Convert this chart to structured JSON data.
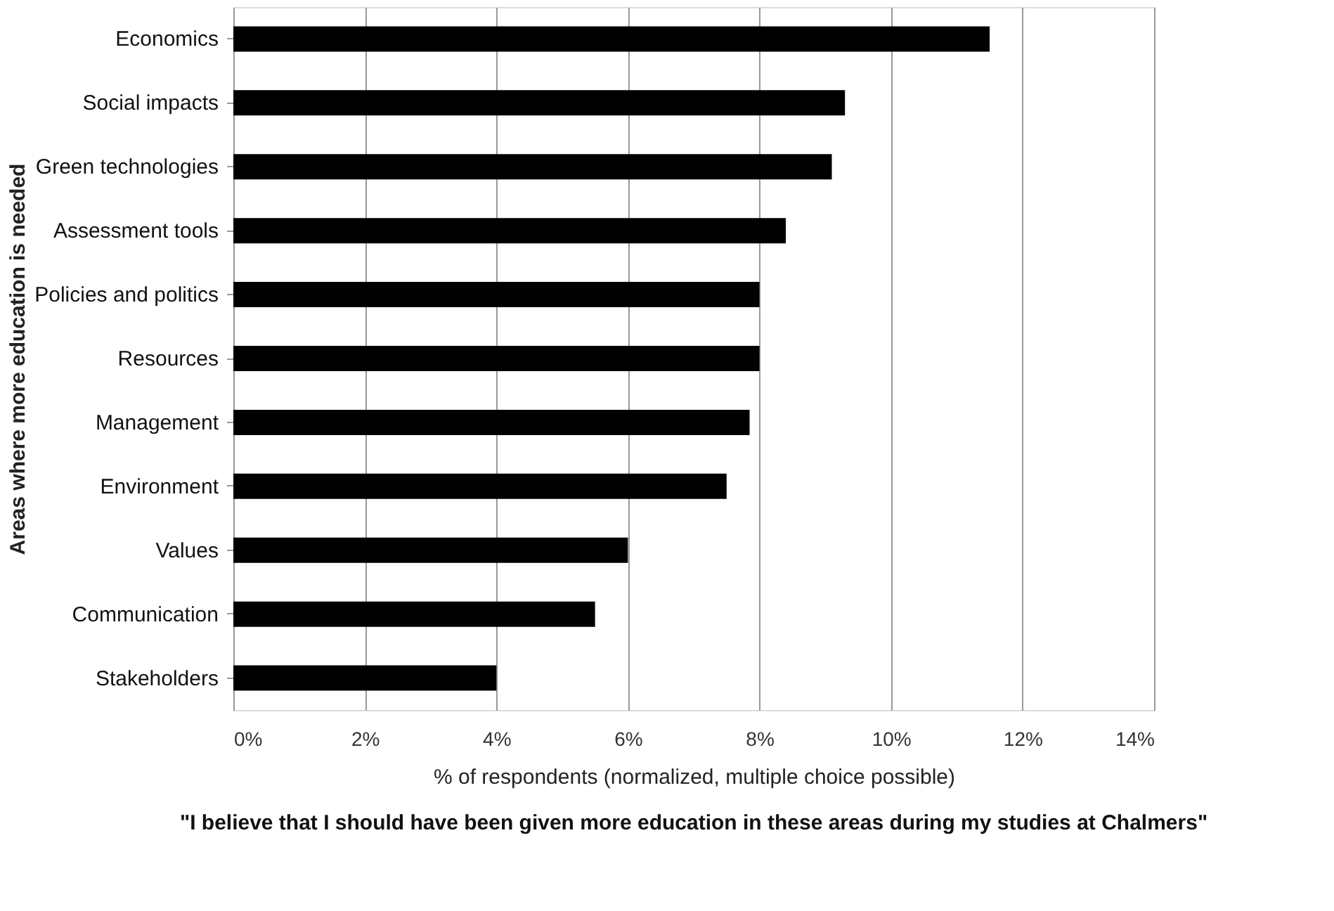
{
  "chart_data": {
    "type": "bar",
    "orientation": "horizontal",
    "categories": [
      "Economics",
      "Social impacts",
      "Green technologies",
      "Assessment tools",
      "Policies and politics",
      "Resources",
      "Management",
      "Environment",
      "Values",
      "Communication",
      "Stakeholders"
    ],
    "values": [
      11.5,
      9.3,
      9.1,
      8.4,
      8.0,
      8.0,
      7.85,
      7.5,
      6.0,
      5.5,
      4.0
    ],
    "color": "#000000",
    "xlim": [
      0,
      14
    ],
    "xticks": [
      {
        "value": 0,
        "label": "0%"
      },
      {
        "value": 2,
        "label": "2%"
      },
      {
        "value": 4,
        "label": "4%"
      },
      {
        "value": 6,
        "label": "6%"
      },
      {
        "value": 8,
        "label": "8%"
      },
      {
        "value": 10,
        "label": "10%"
      },
      {
        "value": 12,
        "label": "12%"
      },
      {
        "value": 14,
        "label": "14%"
      }
    ],
    "xlabel": "% of respondents (normalized, multiple choice possible)",
    "ylabel": "Areas where more education is needed",
    "grid": "x",
    "annotations": [
      "\"I believe that I should have been given more education in these areas during my studies at Chalmers\""
    ]
  }
}
